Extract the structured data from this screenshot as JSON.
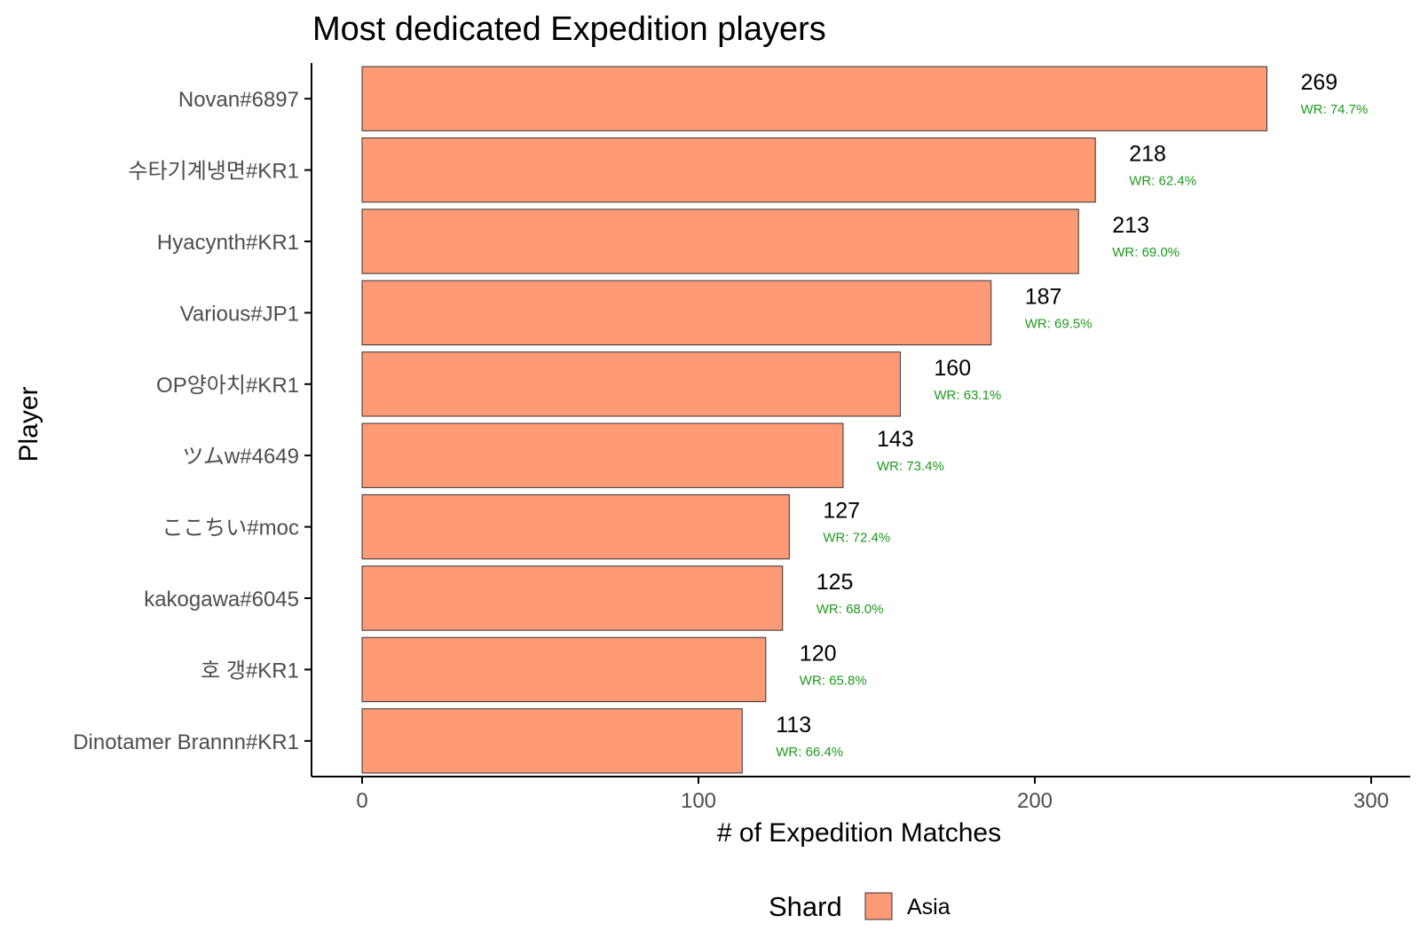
{
  "chart_data": {
    "type": "bar",
    "orientation": "horizontal",
    "title": "Most dedicated Expedition players",
    "xlabel": "# of Expedition Matches",
    "ylabel": "Player",
    "xlim": [
      0,
      300
    ],
    "xticks": [
      0,
      100,
      200,
      300
    ],
    "grid": false,
    "categories": [
      "Novan#6897",
      "수타기계냉면#KR1",
      "Hyacynth#KR1",
      "Various#JP1",
      "OP양아치#KR1",
      "ツムw#4649",
      "ここちい#moc",
      "kakogawa#6045",
      "호 갱#KR1",
      "Dinotamer Brannn#KR1"
    ],
    "series": [
      {
        "name": "Asia",
        "values": [
          269,
          218,
          213,
          187,
          160,
          143,
          127,
          125,
          120,
          113
        ],
        "win_rates": [
          "WR: 74.7%",
          "WR: 62.4%",
          "WR: 69.0%",
          "WR: 69.5%",
          "WR: 63.1%",
          "WR: 73.4%",
          "WR: 72.4%",
          "WR: 68.0%",
          "WR: 65.8%",
          "WR: 66.4%"
        ]
      }
    ],
    "legend": {
      "title": "Shard",
      "position": "bottom",
      "items": [
        "Asia"
      ]
    },
    "colors": {
      "bar_fill": "#fe9a76",
      "bar_stroke": "#333333",
      "win_rate_text": "#1d9a1d",
      "axis": "#000000"
    }
  }
}
